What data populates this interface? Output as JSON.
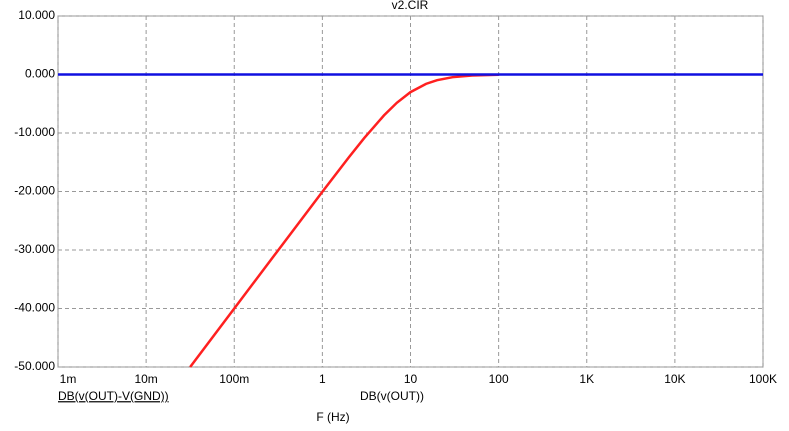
{
  "chart_data": {
    "type": "line",
    "title": "v2.CIR",
    "xlabel": "F (Hz)",
    "xscale": "log",
    "grid": true,
    "xlim": [
      0.001,
      100000
    ],
    "ylim": [
      -50,
      10
    ],
    "xticks": [
      {
        "value": 0.001,
        "label": "1m"
      },
      {
        "value": 0.01,
        "label": "10m"
      },
      {
        "value": 0.1,
        "label": "100m"
      },
      1,
      10,
      100,
      {
        "value": 1000,
        "label": "1K"
      },
      {
        "value": 10000,
        "label": "10K"
      },
      {
        "value": 100000,
        "label": "100K"
      }
    ],
    "yticks": [
      {
        "value": 10,
        "label": "10.000"
      },
      {
        "value": 0,
        "label": "0.000"
      },
      {
        "value": -10,
        "label": "-10.000"
      },
      {
        "value": -20,
        "label": "-20.000"
      },
      {
        "value": -30,
        "label": "-30.000"
      },
      {
        "value": -40,
        "label": "-40.000"
      },
      {
        "value": -50,
        "label": "-50.000"
      }
    ],
    "series": [
      {
        "name": "DB(v(OUT)-V(GND))",
        "color": "#ff2020",
        "x": [
          0.0316,
          0.1,
          0.3,
          1,
          2,
          3,
          5,
          7,
          10,
          15,
          20,
          30,
          50,
          100
        ],
        "values": [
          -50.0,
          -40.0,
          -30.46,
          -20.04,
          -14.15,
          -10.83,
          -6.99,
          -4.83,
          -3.01,
          -1.6,
          -0.97,
          -0.46,
          -0.17,
          -0.04
        ]
      },
      {
        "name": "DB(v(OUT))",
        "color": "#1010e0",
        "x": [
          0.001,
          100000
        ],
        "values": [
          0,
          0
        ]
      }
    ]
  }
}
